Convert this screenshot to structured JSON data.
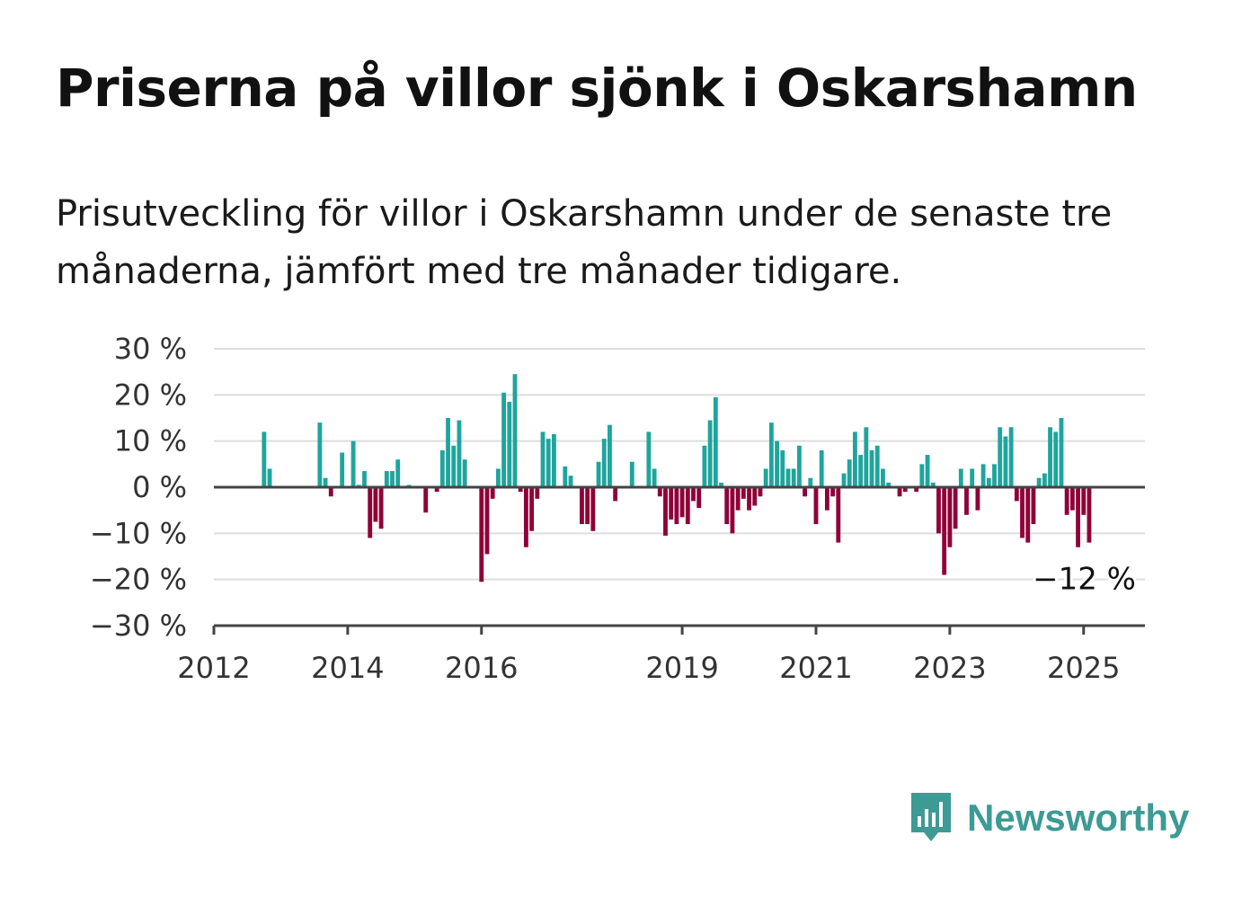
{
  "title": "Priserna på villor sjönk i Oskarshamn",
  "subtitle": "Prisutveckling för villor i Oskarshamn under de senaste tre månaderna, jämfört med tre månader tidigare.",
  "brand": {
    "name": "Newsworthy",
    "color": "#3d9a94",
    "icon": "bar-chart-speech-bubble-icon"
  },
  "colors": {
    "positive": "#1ea59d",
    "negative": "#8f0038",
    "grid": "#dddddd",
    "zero_line": "#444444",
    "axis": "#444444"
  },
  "chart_data": {
    "type": "bar",
    "title": "Priserna på villor sjönk i Oskarshamn",
    "subtitle": "Prisutveckling för villor i Oskarshamn under de senaste tre månaderna, jämfört med tre månader tidigare.",
    "unit": "%",
    "ylim": [
      -30,
      30
    ],
    "y_ticks": [
      30,
      20,
      10,
      0,
      -10,
      -20,
      -30
    ],
    "y_tick_labels": [
      "30 %",
      "20 %",
      "10 %",
      "0 %",
      "−10 %",
      "−20 %",
      "−30 %"
    ],
    "x_range": [
      "2012-01",
      "2025-12"
    ],
    "x_ticks": [
      "2012",
      "2014",
      "2016",
      "2019",
      "2021",
      "2023",
      "2025"
    ],
    "grid": true,
    "last_value_label": "−12 %",
    "series": [
      {
        "values": [
          [
            "2012-10",
            12
          ],
          [
            "2012-11",
            4
          ],
          [
            "2013-08",
            14
          ],
          [
            "2013-09",
            2
          ],
          [
            "2013-10",
            -2
          ],
          [
            "2013-12",
            7.5
          ],
          [
            "2014-02",
            10
          ],
          [
            "2014-03",
            0.5
          ],
          [
            "2014-04",
            3.5
          ],
          [
            "2014-05",
            -11
          ],
          [
            "2014-06",
            -7.5
          ],
          [
            "2014-07",
            -9
          ],
          [
            "2014-08",
            3.5
          ],
          [
            "2014-09",
            3.5
          ],
          [
            "2014-10",
            6
          ],
          [
            "2014-12",
            0.5
          ],
          [
            "2015-03",
            -5.5
          ],
          [
            "2015-05",
            -1
          ],
          [
            "2015-06",
            8
          ],
          [
            "2015-07",
            15
          ],
          [
            "2015-08",
            9
          ],
          [
            "2015-09",
            14.5
          ],
          [
            "2015-10",
            6
          ],
          [
            "2016-01",
            -20.5
          ],
          [
            "2016-02",
            -14.5
          ],
          [
            "2016-03",
            -2.5
          ],
          [
            "2016-04",
            4
          ],
          [
            "2016-05",
            20.5
          ],
          [
            "2016-06",
            18.5
          ],
          [
            "2016-07",
            24.5
          ],
          [
            "2016-08",
            -1
          ],
          [
            "2016-09",
            -13
          ],
          [
            "2016-10",
            -9.5
          ],
          [
            "2016-11",
            -2.5
          ],
          [
            "2016-12",
            12
          ],
          [
            "2017-01",
            10.5
          ],
          [
            "2017-02",
            11.5
          ],
          [
            "2017-04",
            4.5
          ],
          [
            "2017-05",
            2.5
          ],
          [
            "2017-07",
            -8
          ],
          [
            "2017-08",
            -8
          ],
          [
            "2017-09",
            -9.5
          ],
          [
            "2017-10",
            5.5
          ],
          [
            "2017-11",
            10.5
          ],
          [
            "2017-12",
            13.5
          ],
          [
            "2018-01",
            -3
          ],
          [
            "2018-04",
            5.5
          ],
          [
            "2018-07",
            12
          ],
          [
            "2018-08",
            4
          ],
          [
            "2018-09",
            -2
          ],
          [
            "2018-10",
            -10.5
          ],
          [
            "2018-11",
            -7
          ],
          [
            "2018-12",
            -8
          ],
          [
            "2019-01",
            -6.5
          ],
          [
            "2019-02",
            -8
          ],
          [
            "2019-03",
            -3
          ],
          [
            "2019-04",
            -4.5
          ],
          [
            "2019-05",
            9
          ],
          [
            "2019-06",
            14.5
          ],
          [
            "2019-07",
            19.5
          ],
          [
            "2019-08",
            1
          ],
          [
            "2019-09",
            -8
          ],
          [
            "2019-10",
            -10
          ],
          [
            "2019-11",
            -5
          ],
          [
            "2019-12",
            -2.5
          ],
          [
            "2020-01",
            -5
          ],
          [
            "2020-02",
            -4
          ],
          [
            "2020-03",
            -2
          ],
          [
            "2020-04",
            4
          ],
          [
            "2020-05",
            14
          ],
          [
            "2020-06",
            10
          ],
          [
            "2020-07",
            8
          ],
          [
            "2020-08",
            4
          ],
          [
            "2020-09",
            4
          ],
          [
            "2020-10",
            9
          ],
          [
            "2020-11",
            -2
          ],
          [
            "2020-12",
            2
          ],
          [
            "2021-01",
            -8
          ],
          [
            "2021-02",
            8
          ],
          [
            "2021-03",
            -5
          ],
          [
            "2021-04",
            -2
          ],
          [
            "2021-05",
            -12
          ],
          [
            "2021-06",
            3
          ],
          [
            "2021-07",
            6
          ],
          [
            "2021-08",
            12
          ],
          [
            "2021-09",
            7
          ],
          [
            "2021-10",
            13
          ],
          [
            "2021-11",
            8
          ],
          [
            "2021-12",
            9
          ],
          [
            "2022-01",
            4
          ],
          [
            "2022-02",
            1
          ],
          [
            "2022-04",
            -2
          ],
          [
            "2022-05",
            -1
          ],
          [
            "2022-07",
            -1
          ],
          [
            "2022-08",
            5
          ],
          [
            "2022-09",
            7
          ],
          [
            "2022-10",
            1
          ],
          [
            "2022-11",
            -10
          ],
          [
            "2022-12",
            -19
          ],
          [
            "2023-01",
            -13
          ],
          [
            "2023-02",
            -9
          ],
          [
            "2023-03",
            4
          ],
          [
            "2023-04",
            -6
          ],
          [
            "2023-05",
            4
          ],
          [
            "2023-06",
            -5
          ],
          [
            "2023-07",
            5
          ],
          [
            "2023-08",
            2
          ],
          [
            "2023-09",
            5
          ],
          [
            "2023-10",
            13
          ],
          [
            "2023-11",
            11
          ],
          [
            "2023-12",
            13
          ],
          [
            "2024-01",
            -3
          ],
          [
            "2024-02",
            -11
          ],
          [
            "2024-03",
            -12
          ],
          [
            "2024-04",
            -8
          ],
          [
            "2024-05",
            2
          ],
          [
            "2024-06",
            3
          ],
          [
            "2024-07",
            13
          ],
          [
            "2024-08",
            12
          ],
          [
            "2024-09",
            15
          ],
          [
            "2024-10",
            -6
          ],
          [
            "2024-11",
            -5
          ],
          [
            "2024-12",
            -13
          ],
          [
            "2025-01",
            -6
          ],
          [
            "2025-02",
            -12
          ]
        ]
      }
    ]
  }
}
